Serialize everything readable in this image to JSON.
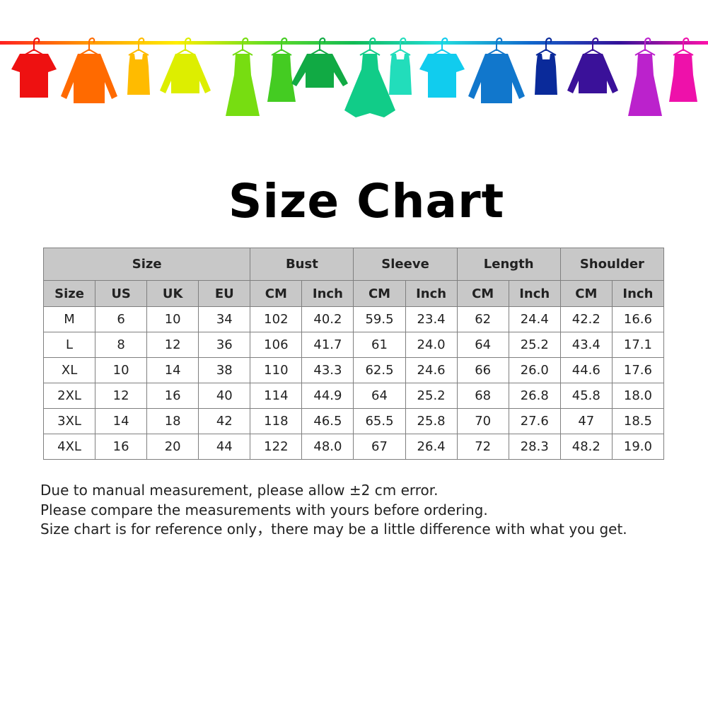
{
  "banner": {
    "rod_gradient": [
      "#ff2020",
      "#ff9900",
      "#ffee00",
      "#66dd22",
      "#11bb55",
      "#22dddd",
      "#1166cc",
      "#331199",
      "#ff11aa"
    ],
    "items": [
      {
        "icon": "tshirt-icon",
        "color": "#ee1111"
      },
      {
        "icon": "shirt-icon",
        "color": "#ff6a00"
      },
      {
        "icon": "tank-top-icon",
        "color": "#ffbb00"
      },
      {
        "icon": "cardigan-icon",
        "color": "#ddee00"
      },
      {
        "icon": "dress-icon",
        "color": "#77dd11"
      },
      {
        "icon": "sleeveless-dress-icon",
        "color": "#44cc22"
      },
      {
        "icon": "sweater-icon",
        "color": "#11aa44"
      },
      {
        "icon": "flared-dress-icon",
        "color": "#11cc88"
      },
      {
        "icon": "tank-top-icon",
        "color": "#22ddbb"
      },
      {
        "icon": "tshirt-icon",
        "color": "#11ccee"
      },
      {
        "icon": "shirt-icon",
        "color": "#1177cc"
      },
      {
        "icon": "tank-top-icon",
        "color": "#0a2a9a"
      },
      {
        "icon": "cardigan-icon",
        "color": "#3a1199"
      },
      {
        "icon": "dress-icon",
        "color": "#bb22cc"
      },
      {
        "icon": "sleeveless-dress-icon",
        "color": "#ee11aa"
      }
    ]
  },
  "title": "Size Chart",
  "table": {
    "groups": [
      "Size",
      "Bust",
      "Sleeve",
      "Length",
      "Shoulder"
    ],
    "subheaders": [
      "Size",
      "US",
      "UK",
      "EU",
      "CM",
      "Inch",
      "CM",
      "Inch",
      "CM",
      "Inch",
      "CM",
      "Inch"
    ],
    "rows": [
      [
        "M",
        "6",
        "10",
        "34",
        "102",
        "40.2",
        "59.5",
        "23.4",
        "62",
        "24.4",
        "42.2",
        "16.6"
      ],
      [
        "L",
        "8",
        "12",
        "36",
        "106",
        "41.7",
        "61",
        "24.0",
        "64",
        "25.2",
        "43.4",
        "17.1"
      ],
      [
        "XL",
        "10",
        "14",
        "38",
        "110",
        "43.3",
        "62.5",
        "24.6",
        "66",
        "26.0",
        "44.6",
        "17.6"
      ],
      [
        "2XL",
        "12",
        "16",
        "40",
        "114",
        "44.9",
        "64",
        "25.2",
        "68",
        "26.8",
        "45.8",
        "18.0"
      ],
      [
        "3XL",
        "14",
        "18",
        "42",
        "118",
        "46.5",
        "65.5",
        "25.8",
        "70",
        "27.6",
        "47",
        "18.5"
      ],
      [
        "4XL",
        "16",
        "20",
        "44",
        "122",
        "48.0",
        "67",
        "26.4",
        "72",
        "28.3",
        "48.2",
        "19.0"
      ]
    ]
  },
  "notes": [
    "Due to manual measurement, please allow ±2 cm error.",
    "Please compare the measurements with yours before ordering.",
    "Size chart is for reference only，there may be a little difference with what you get."
  ]
}
